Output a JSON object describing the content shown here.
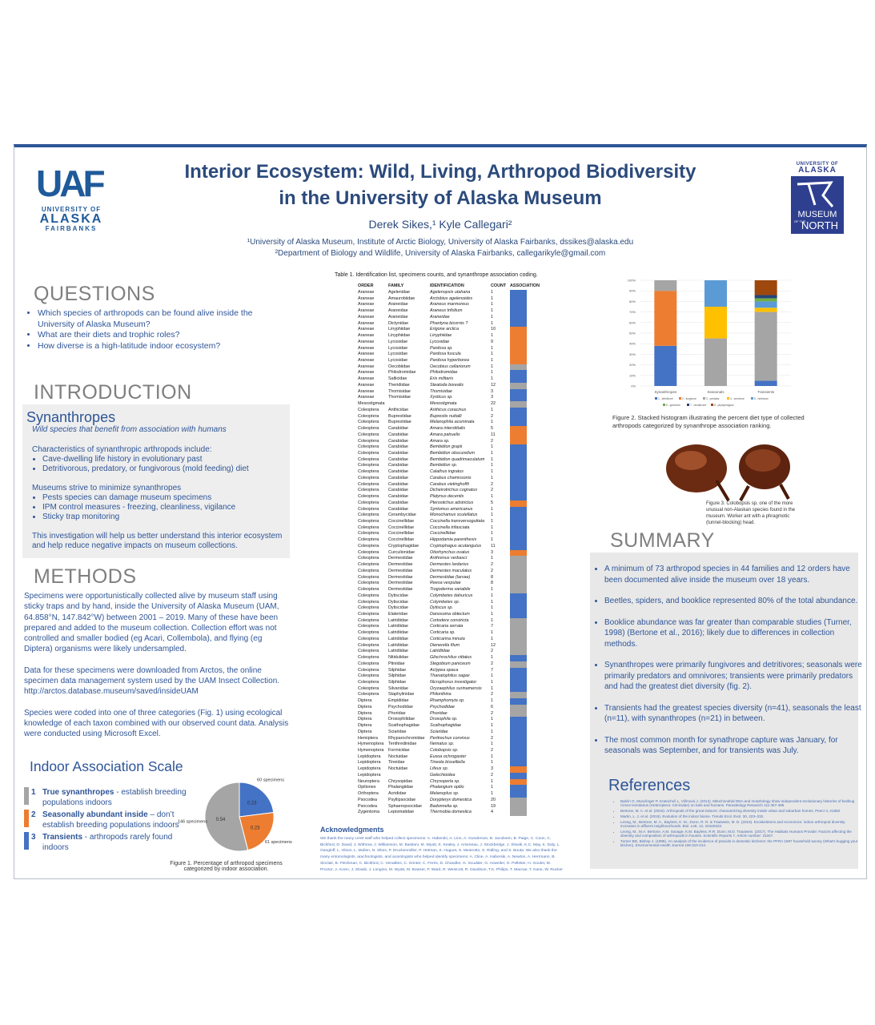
{
  "header": {
    "title_line1": "Interior Ecosystem: Wild, Living, Arthropod Biodiversity",
    "title_line2": "in the University of Alaska Museum",
    "authors": "Derek Sikes,¹ Kyle Callegari²",
    "affiliation1": "¹University of Alaska Museum, Institute of Arctic Biology, University of Alaska Fairbanks, dssikes@alaska.edu",
    "affiliation2": "²Department of Biology and Wildlife, University of Alaska Fairbanks, callegarikyle@gmail.com"
  },
  "logos": {
    "left_mark": "UAF",
    "left_line1": "UNIVERSITY OF",
    "left_line2": "ALASKA",
    "left_line3": "FAIRBANKS",
    "right_line1": "UNIVERSITY OF",
    "right_line2": "ALASKA",
    "right_line3": "MUSEUM",
    "right_line4": "OF THE",
    "right_line5": "NORTH"
  },
  "questions": {
    "heading": "QUESTIONS",
    "items": [
      "Which species of arthropods can be found alive inside the University of Alaska Museum?",
      "What are their diets and trophic roles?",
      "How diverse is a high-latitude indoor ecosystem?"
    ]
  },
  "introduction": {
    "heading": "INTRODUCTION",
    "subheading": "Synanthropes",
    "tagline": "Wild species that benefit from association with humans",
    "characteristics_intro": "Characteristics of synanthropic arthropods include:",
    "characteristics": [
      "Cave-dwelling life history in evolutionary past",
      "Detritivorous, predatory, or fungivorous (mold feeding) diet"
    ],
    "museums_intro": "Museums strive to minimize synanthropes",
    "museums": [
      "Pests species can damage museum specimens",
      "IPM control measures  - freezing, cleanliness, vigilance",
      "Sticky trap monitoring"
    ],
    "closing": "This investigation will help us better understand this interior ecosystem and help reduce negative impacts on museum collections."
  },
  "methods": {
    "heading": "METHODS",
    "paragraphs": [
      "Specimens were opportunistically collected alive by museum staff using sticky traps and by hand, inside the University of Alaska Museum (UAM, 64.858°N, 147.842°W) between 2001 – 2019. Many of these have been prepared and added to the museum collection. Collection effort was not controlled and smaller bodied (eg Acari, Collembola), and flying (eg Diptera) organisms were likely undersampled.",
      "Data for these specimens were downloaded from Arctos, the online specimen data management system used by the UAM Insect Collection. http://arctos.database.museum/saved/insideUAM",
      "Species were coded into one of three categories (Fig. 1) using ecological knowledge of each taxon combined with our observed count data. Analysis were conducted using Microsoft Excel."
    ]
  },
  "scale": {
    "heading": "Indoor Association Scale",
    "items": [
      {
        "number": "1",
        "term": "True synanthropes",
        "description": " -  establish breeding populations indoors"
      },
      {
        "number": "2",
        "term": "Seasonally abundant inside",
        "description": " – don’t establish breeding populations indoors"
      },
      {
        "number": "3",
        "term": "Transients",
        "description": " - arthropods rarely found indoors"
      }
    ]
  },
  "table": {
    "caption": "Table 1. Identification list, specimens counts, and synanthrope association coding.",
    "header": [
      "ORDER",
      "FAMILY",
      "IDENTIFICATION",
      "COUNT",
      "ASSOCIATION"
    ],
    "association_colors": {
      "1": "#a5a5a5",
      "2": "#ed7d31",
      "3": "#4472c4"
    },
    "association": [
      3,
      3,
      3,
      3,
      3,
      3,
      2,
      2,
      2,
      2,
      2,
      2,
      1,
      3,
      3,
      1,
      3,
      3,
      1,
      3,
      3,
      3,
      2,
      2,
      2,
      3,
      3,
      3,
      3,
      3,
      3,
      3,
      3,
      3,
      2,
      3,
      3,
      3,
      3,
      3,
      3,
      3,
      2,
      1,
      1,
      1,
      1,
      1,
      1,
      3,
      3,
      3,
      3,
      1,
      1,
      1,
      1,
      1,
      1,
      3,
      1,
      3,
      3,
      3,
      3,
      1,
      3,
      1,
      1,
      3,
      3,
      3,
      3,
      3,
      3,
      3,
      3,
      2,
      3,
      2,
      3,
      3,
      1,
      1,
      1
    ],
    "rows": [
      [
        "Araneae",
        "Agelenidae",
        "Agelenopsis utahana",
        1
      ],
      [
        "Araneae",
        "Amaurobiidae",
        "Arctobius agelenoides",
        1
      ],
      [
        "Araneae",
        "Araneidae",
        "Araneus marmoreus",
        1
      ],
      [
        "Araneae",
        "Araneidae",
        "Araneus trifolium",
        1
      ],
      [
        "Araneae",
        "Araneidae",
        "Araneidae",
        1
      ],
      [
        "Araneae",
        "Dictynidae",
        "Phantyna bicornis ?",
        1
      ],
      [
        "Araneae",
        "Linyphiidae",
        "Erigone arctica",
        10
      ],
      [
        "Araneae",
        "Linyphiidae",
        "Linyphiidae",
        1
      ],
      [
        "Araneae",
        "Lycosidae",
        "Lycosidae",
        9
      ],
      [
        "Araneae",
        "Lycosidae",
        "Pardosa sp.",
        1
      ],
      [
        "Araneae",
        "Lycosidae",
        "Pardosa fuscula",
        1
      ],
      [
        "Araneae",
        "Lycosidae",
        "Pardosa hyperborea",
        1
      ],
      [
        "Araneae",
        "Oecobiidae",
        "Oecobius cellariorum",
        1
      ],
      [
        "Araneae",
        "Philodromidae",
        "Philodromidae",
        1
      ],
      [
        "Araneae",
        "Salticidae",
        "Eris militaris",
        1
      ],
      [
        "Araneae",
        "Theridiidae",
        "Steatoda borealis",
        12
      ],
      [
        "Araneae",
        "Thomisidae",
        "Thomisidae",
        3
      ],
      [
        "Araneae",
        "Thomisidae",
        "Xysticus sp.",
        3
      ],
      [
        "Mesostigmata",
        null,
        "Mesostigmata",
        22
      ],
      [
        "Coleoptera",
        "Anthicidae",
        "Anthicus coracinus",
        1
      ],
      [
        "Coleoptera",
        "Buprestidae",
        "Buprestis nuttalli",
        2
      ],
      [
        "Coleoptera",
        "Buprestidae",
        "Melanophila acuminata",
        1
      ],
      [
        "Coleoptera",
        "Carabidae",
        "Amara interstitialis",
        5
      ],
      [
        "Coleoptera",
        "Carabidae",
        "Amara patruelis",
        11
      ],
      [
        "Coleoptera",
        "Carabidae",
        "Amara sp.",
        2
      ],
      [
        "Coleoptera",
        "Carabidae",
        "Bembidion grapii",
        1
      ],
      [
        "Coleoptera",
        "Carabidae",
        "Bembidion obscurellum",
        1
      ],
      [
        "Coleoptera",
        "Carabidae",
        "Bembidion quadrimaculatum",
        1
      ],
      [
        "Coleoptera",
        "Carabidae",
        "Bembidion sp.",
        1
      ],
      [
        "Coleoptera",
        "Carabidae",
        "Calathus ingratus",
        1
      ],
      [
        "Coleoptera",
        "Carabidae",
        "Carabus chamissonis",
        1
      ],
      [
        "Coleoptera",
        "Carabidae",
        "Carabus vietinghoffii",
        2
      ],
      [
        "Coleoptera",
        "Carabidae",
        "Dicheirotrichus cognatus",
        2
      ],
      [
        "Coleoptera",
        "Carabidae",
        "Platynus decentis",
        1
      ],
      [
        "Coleoptera",
        "Carabidae",
        "Pterostichus adstrictus",
        5
      ],
      [
        "Coleoptera",
        "Carabidae",
        "Syntomus americanus",
        1
      ],
      [
        "Coleoptera",
        "Cerambycidae",
        "Monochamus scutellatus",
        1
      ],
      [
        "Coleoptera",
        "Coccinellidae",
        "Coccinella transversoguttata",
        1
      ],
      [
        "Coleoptera",
        "Coccinellidae",
        "Coccinella trifasciata",
        1
      ],
      [
        "Coleoptera",
        "Coccinellidae",
        "Coccinellidae",
        1
      ],
      [
        "Coleoptera",
        "Coccinellidae",
        "Hippodamia parenthesis",
        1
      ],
      [
        "Coleoptera",
        "Cryptophagidae",
        "Cryptophagus acutangulus",
        11
      ],
      [
        "Coleoptera",
        "Curculionidae",
        "Otiorhynchus ovatus",
        3
      ],
      [
        "Coleoptera",
        "Dermestidae",
        "Anthrenus verbasci",
        1
      ],
      [
        "Coleoptera",
        "Dermestidae",
        "Dermestes lardarius",
        2
      ],
      [
        "Coleoptera",
        "Dermestidae",
        "Dermestes maculatus",
        2
      ],
      [
        "Coleoptera",
        "Dermestidae",
        "Dermestidae (larvae)",
        8
      ],
      [
        "Coleoptera",
        "Dermestidae",
        "Reesa vespulae",
        8
      ],
      [
        "Coleoptera",
        "Dermestidae",
        "Trogoderma variabile",
        1
      ],
      [
        "Coleoptera",
        "Dytiscidae",
        "Colymbetes dahuricus",
        1
      ],
      [
        "Coleoptera",
        "Dytiscidae",
        "Colymbetes sp.",
        1
      ],
      [
        "Coleoptera",
        "Dytiscidae",
        "Dytiscus sp.",
        1
      ],
      [
        "Coleoptera",
        "Elateridae",
        "Danosoma obtectum",
        1
      ],
      [
        "Coleoptera",
        "Latridiidae",
        "Cortodere constricta",
        1
      ],
      [
        "Coleoptera",
        "Latridiidae",
        "Corticaria serrata",
        7
      ],
      [
        "Coleoptera",
        "Latridiidae",
        "Corticaria sp.",
        1
      ],
      [
        "Coleoptera",
        "Latridiidae",
        "Corticarina minuta",
        1
      ],
      [
        "Coleoptera",
        "Latridiidae",
        "Dienerella filum",
        12
      ],
      [
        "Coleoptera",
        "Latridiidae",
        "Latridiidae",
        2
      ],
      [
        "Coleoptera",
        "Nitidulidae",
        "Glischrochilus vittatus",
        1
      ],
      [
        "Coleoptera",
        "Ptiniidae",
        "Stegobium paniceum",
        2
      ],
      [
        "Coleoptera",
        "Silphidae",
        "Aclypea opaca",
        7
      ],
      [
        "Coleoptera",
        "Silphidae",
        "Thanatophilus sagax",
        1
      ],
      [
        "Coleoptera",
        "Silphidae",
        "Nicrophorus investigator",
        1
      ],
      [
        "Coleoptera",
        "Silvanidae",
        "Oryzaephilus surinamensis",
        1
      ],
      [
        "Coleoptera",
        "Staphylinidae",
        "Philonthina",
        2
      ],
      [
        "Diptera",
        "Empididae",
        "Rhamphomyia sp.",
        1
      ],
      [
        "Diptera",
        "Psychodidae",
        "Psychodidae",
        6
      ],
      [
        "Diptera",
        "Phoridae",
        "Phoridae",
        2
      ],
      [
        "Diptera",
        "Drosophilidae",
        "Drosophila sp.",
        1
      ],
      [
        "Diptera",
        "Scathophagidae",
        "Scathophagidae",
        1
      ],
      [
        "Diptera",
        "Sciaridae",
        "Sciaridae",
        1
      ],
      [
        "Hemiptera",
        "Rhyparochromidae",
        "Peritrechus convivus",
        2
      ],
      [
        "Hymenoptera",
        "Tenthredinidae",
        "Nematus sp.",
        1
      ],
      [
        "Hymenoptera",
        "Formicidae",
        "Colobopsis sp.",
        2
      ],
      [
        "Lepidoptera",
        "Noctuidae",
        "Euxoa ochrogaster",
        1
      ],
      [
        "Lepidoptera",
        "Tineidae",
        "Tineola bisselliella",
        1
      ],
      [
        "Lepidoptera",
        "Noctuidae",
        "Lifeus sp.",
        3
      ],
      [
        "Lepidoptera",
        null,
        "Gelechioidea",
        2
      ],
      [
        "Neuroptera",
        "Chrysopidae",
        "Chrysoperla sp.",
        1
      ],
      [
        "Opiliones",
        "Phalangiidae",
        "Phalangium opilio",
        1
      ],
      [
        "Orthoptera",
        "Acrididae",
        "Melanoplus sp.",
        1
      ],
      [
        "Psocodea",
        "Psyllipsocidae",
        "Dorypteryx domestica",
        20
      ],
      [
        "Psocodea",
        "Sphaeropsocidae",
        "Badonnelia sp.",
        19
      ],
      [
        "Zygentoma",
        "Lepismatidae",
        "Thermobia domestica",
        4
      ]
    ]
  },
  "chart_data": [
    {
      "type": "pie",
      "values": [
        0.23,
        0.23,
        0.54
      ],
      "colors": [
        "#4472c4",
        "#ed7d31",
        "#a5a5a5"
      ],
      "annotations": [
        "60 specimens",
        "61 specimens",
        "146 specimens"
      ],
      "caption": "Figure 1. Percentage of arthropod specimens categorized by indoor association."
    },
    {
      "type": "stacked-bar",
      "categories": [
        "Synanthropes",
        "Seasonals",
        "Transients"
      ],
      "ylim": [
        0,
        100
      ],
      "yticks": [
        {
          "value": 0,
          "label": "0%"
        },
        {
          "value": 10,
          "label": "10%"
        },
        {
          "value": 20,
          "label": "20%"
        },
        {
          "value": 30,
          "label": "30%"
        },
        {
          "value": 40,
          "label": "40%"
        },
        {
          "value": 50,
          "label": "50%"
        },
        {
          "value": 60,
          "label": "60%"
        },
        {
          "value": 70,
          "label": "70%"
        },
        {
          "value": 80,
          "label": "80%"
        },
        {
          "value": 90,
          "label": "90%"
        },
        {
          "value": 100,
          "label": "100%"
        }
      ],
      "series": [
        {
          "name": "1 - detritivore",
          "color": "#4472c4",
          "values": [
            38,
            0,
            5
          ]
        },
        {
          "name": "2 - fungivore",
          "color": "#ed7d31",
          "values": [
            52,
            0,
            0
          ]
        },
        {
          "name": "3 - predator",
          "color": "#a5a5a5",
          "values": [
            10,
            45,
            65
          ]
        },
        {
          "name": "4 - omnivore",
          "color": "#ffc000",
          "values": [
            0,
            30,
            4
          ]
        },
        {
          "name": "5 - herbivore",
          "color": "#5b9bd5",
          "values": [
            0,
            25,
            6
          ]
        },
        {
          "name": "6 - granivore",
          "color": "#70ad47",
          "values": [
            0,
            0,
            3
          ]
        },
        {
          "name": "7 - nectarivore",
          "color": "#264478",
          "values": [
            0,
            0,
            3
          ]
        },
        {
          "name": "8 - phytophagous",
          "color": "#9e480e",
          "values": [
            0,
            0,
            14
          ]
        }
      ],
      "caption": "Figure 2. Stacked histogram illustrating the percent diet type of collected arthropods categorized by synanthrope association ranking."
    }
  ],
  "figure3": {
    "caption": "Figure 3. Colobopsis sp. one of the more unusual non-Alaskan species found in the museum. Worker ant with a phragmotic (tunnel-blocking) head."
  },
  "summary": {
    "heading": "SUMMARY",
    "items": [
      "A minimum of 73 arthropod species in 44 families and 12 orders have been documented alive inside the museum over 18 years.",
      "Beetles, spiders, and booklice represented 80% of the total abundance.",
      "Booklice abundance was far greater than comparable studies (Turner, 1998) (Bertone et al., 2016); likely due to differences in collection methods.",
      "Synanthropes were primarily fungivores and detritivores; seasonals were primarily predators and omnivores; transients were primarily predators and had the greatest diet diversity (fig. 2).",
      "Transients had the greatest species diversity (n=41), seasonals the least (n=11), with synanthropes (n=21) in between.",
      "The most common month for synathrope capture was January, for seasonals was September, and for transients was July."
    ]
  },
  "references": {
    "heading": "References",
    "items": [
      "Balvín O, Munclinger P, Kratochvíl L, Vilímová J. (2012). Mitochondrial DNA and morphology show independent evolutionary histories of bedbug Cimex lectularius (Heteroptera: Cimicidae) on bats and humans. Parasitology Research 111:457-469",
      "Bertone, M. A. et al. (2016). Arthropods of the great indoors: characterizing diversity inside urban and suburban homes. PeerJ 4, e1582",
      "Martin, L. J. et al. (2015). Evolution of the indoor biome. Trends Ecol. Evol. 30, 223–232.",
      "Leong, M., Bertone, M. A., Bayless, K. M., Dunn, R. R. & Trautwein, M. D. (2016). Exoskeletons and economics: indoor arthropod diversity increases in affluent neighbourhoods. Biol. Lett. 12, 20160322.",
      "Leong, M., M.A. Bertone, A.M. Savage, K.M. Bayless, R.R. Dunn, M.D. Trautwein. (2017). The Habitats Humans Provide: Factors affecting the diversity and composition of arthropods in houses. Scientific Reports 7, Article number: 15347.",
      "Turner BD, Bishop J. (1998). An analysis of the incidence of psocids in domestic kitchens: the PFRA 1997 household survey (What's bugging your kitchen). Environmental Health Journal 106:310-314."
    ]
  },
  "acknowledgments": {
    "heading": "Acknowledgments",
    "text": "We thank the many UAM staff who helped collect specimens: A. Haberski, A. Linn, A. Gunderson, B. Jacobsen, B. Paige, C. Coon, C. Bickford, D. David, J. Withrow, J. Williamson, M. Bastiani, M. Wyatt, K. Kealey, J. Arseneau, J. Stockbridge, J. Slowik, K.C. May, K. Daly, L. Gangloff, L. Olson, L. Mullen, N. Sikes, P. Druckenmiller, P. Hetman, S. Huguet, S. Meierotto, S. Ridling, and S. Bouta. We also thank the many entomologists, arachnologists, and acarologists who helped identify specimens: A. Cline, A. Haberski, A. Newton, A. Herrmann, B. Sinclair, B. Fleshman, C. Bickford, C. Venables, C. Grinter, C. Ferris, D. Chandler, G. Scudder, G. Anweiler, O. Pelletier, H. Goulet, M. Proctor, J. Acorn, J. Slowik, J. Longino, M. Wyatt, M. Bowser, P. Ward, R. Westcott, R. Davidson, T.K. Philips, T. Macrae, T. Kane, W. Rucker"
  }
}
